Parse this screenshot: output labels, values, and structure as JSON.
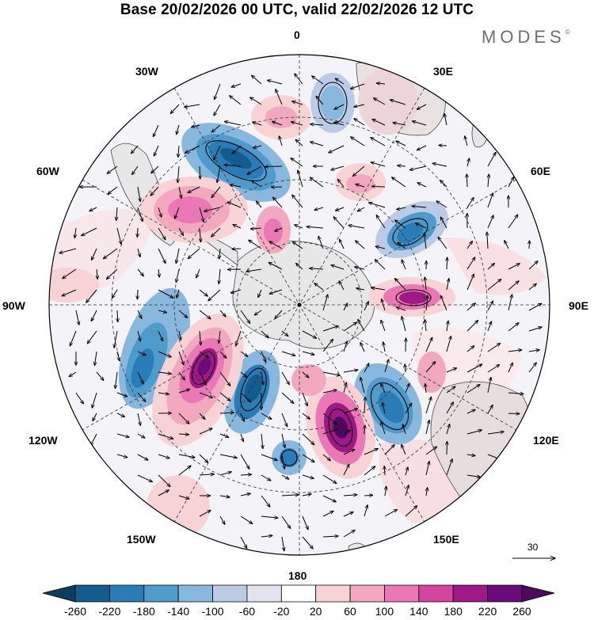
{
  "title": "Base 20/02/2026 00 UTC, valid 22/02/2026 12 UTC",
  "brand": {
    "name": "MODES",
    "mark": "©"
  },
  "longitude_labels": {
    "top": "0",
    "bottom": "180",
    "left": "90W",
    "right": "90E",
    "nw_30": "30W",
    "ne_30": "30E",
    "nw_60": "60W",
    "ne_60": "60E",
    "sw_120": "120W",
    "se_120": "120E",
    "sw_150": "150W",
    "se_150": "150E"
  },
  "vector_scale": {
    "label": "30"
  },
  "colorbar": {
    "labels": [
      "-260",
      "-220",
      "-180",
      "-140",
      "-100",
      "-60",
      "-20",
      "20",
      "60",
      "100",
      "140",
      "180",
      "220",
      "260"
    ],
    "colors": [
      "#0b3d5f",
      "#125d8e",
      "#2a7cb6",
      "#4e9bcc",
      "#89b8de",
      "#bccbe5",
      "#e4e4f0",
      "#ffffff",
      "#f7d3d6",
      "#f2a8bf",
      "#ea78b4",
      "#d4459f",
      "#a01787",
      "#6b0a7a",
      "#4a0a5e"
    ]
  },
  "map_colors": {
    "ocean": "#ffffff",
    "land": "#e6e6e6",
    "coast": "#4a4a4a",
    "grid": "#333333"
  }
}
